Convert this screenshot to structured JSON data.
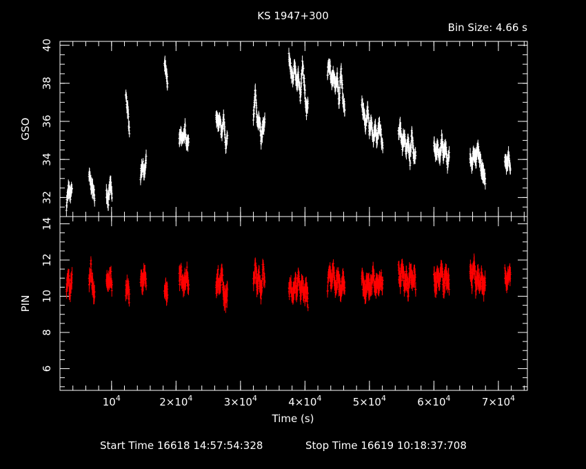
{
  "chart_data": {
    "type": "line",
    "title": "KS 1947+300",
    "bin_size_label": "Bin Size:  4.66  s",
    "xlabel": "Time (s)",
    "footer": {
      "start_time": "Start Time 16618 14:57:54:328",
      "stop_time": "Stop Time 16619 10:18:37:708"
    },
    "xlim": [
      2000,
      74500
    ],
    "x_ticks": [
      {
        "value": 10000,
        "mantissa": "",
        "exp": "4"
      },
      {
        "value": 20000,
        "mantissa": "2×",
        "exp": "4"
      },
      {
        "value": 30000,
        "mantissa": "3×",
        "exp": "4"
      },
      {
        "value": 40000,
        "mantissa": "4×",
        "exp": "4"
      },
      {
        "value": 50000,
        "mantissa": "5×",
        "exp": "4"
      },
      {
        "value": 60000,
        "mantissa": "6×",
        "exp": "4"
      },
      {
        "value": 70000,
        "mantissa": "7×",
        "exp": "4"
      }
    ],
    "panels": [
      {
        "name": "GSO",
        "ylabel": "GSO",
        "color": "#ffffff",
        "ylim": [
          31,
          40.2
        ],
        "yticks": [
          32,
          34,
          36,
          38,
          40
        ],
        "ytick_labels": [
          "32",
          "34",
          "36",
          "38",
          "40"
        ],
        "series": [
          {
            "x": [
              3000,
              3300,
              3600,
              3900
            ],
            "y": [
              31.6,
              32.4,
              32.1,
              32.6
            ]
          },
          {
            "x": [
              6500,
              6800,
              7100,
              7400
            ],
            "y": [
              33.2,
              32.7,
              32.4,
              32.1
            ]
          },
          {
            "x": [
              9200,
              9500,
              9800,
              10100
            ],
            "y": [
              32.3,
              31.8,
              32.8,
              31.9
            ]
          },
          {
            "x": [
              12200,
              12500,
              12800
            ],
            "y": [
              37.4,
              36.6,
              35.4
            ]
          },
          {
            "x": [
              14500,
              14800,
              15100,
              15400
            ],
            "y": [
              33.1,
              33.8,
              33.2,
              34.0
            ]
          },
          {
            "x": [
              18200,
              18500,
              18700
            ],
            "y": [
              39.1,
              38.4,
              38.0
            ]
          },
          {
            "x": [
              20500,
              20800,
              21100,
              21400,
              21700,
              22000
            ],
            "y": [
              35.0,
              35.3,
              34.9,
              35.6,
              34.7,
              35.2
            ]
          },
          {
            "x": [
              26200,
              26500,
              26800,
              27100,
              27400,
              27700,
              28000
            ],
            "y": [
              36.4,
              35.9,
              36.0,
              35.3,
              36.2,
              34.8,
              35.2
            ]
          },
          {
            "x": [
              32000,
              32300,
              32600,
              32900,
              33200,
              33500,
              33800
            ],
            "y": [
              36.0,
              37.6,
              35.8,
              36.2,
              35.1,
              35.7,
              35.9
            ]
          },
          {
            "x": [
              37500,
              37800,
              38100,
              38400,
              38700,
              39000,
              39300,
              39600,
              39900,
              40200,
              40500
            ],
            "y": [
              39.5,
              38.7,
              38.2,
              39.0,
              37.9,
              38.4,
              37.3,
              39.1,
              38.0,
              36.5,
              37.2
            ]
          },
          {
            "x": [
              43500,
              43800,
              44100,
              44400,
              44700,
              45000,
              45300,
              45600,
              45900,
              46200
            ],
            "y": [
              38.6,
              39.0,
              38.1,
              38.5,
              37.8,
              38.3,
              37.0,
              38.7,
              37.2,
              36.6
            ]
          },
          {
            "x": [
              48800,
              49100,
              49400,
              49700,
              50000,
              50300,
              50600,
              50900,
              51200,
              51500,
              51800,
              52100
            ],
            "y": [
              37.0,
              36.4,
              35.8,
              36.6,
              35.4,
              36.1,
              35.0,
              35.7,
              34.9,
              35.9,
              35.3,
              34.4
            ]
          },
          {
            "x": [
              54500,
              54800,
              55100,
              55400,
              55700,
              56000,
              56300,
              56600,
              56900,
              57200
            ],
            "y": [
              35.3,
              35.7,
              34.8,
              35.2,
              34.5,
              35.0,
              33.9,
              35.4,
              34.1,
              34.4
            ]
          },
          {
            "x": [
              60000,
              60300,
              60600,
              60900,
              61200,
              61500,
              61800,
              62100,
              62400
            ],
            "y": [
              34.9,
              34.3,
              34.6,
              34.0,
              35.1,
              34.2,
              34.8,
              33.7,
              34.3
            ]
          },
          {
            "x": [
              65600,
              65900,
              66200,
              66500,
              66800,
              67100,
              67400,
              67700,
              68000
            ],
            "y": [
              34.1,
              33.7,
              34.4,
              33.9,
              34.6,
              34.0,
              33.5,
              33.2,
              32.9
            ]
          },
          {
            "x": [
              71000,
              71300,
              71600,
              71900
            ],
            "y": [
              34.0,
              33.7,
              34.2,
              33.5
            ]
          }
        ]
      },
      {
        "name": "PIN",
        "ylabel": "PIN",
        "color": "#ff0000",
        "ylim": [
          4.8,
          14.4
        ],
        "yticks": [
          6,
          8,
          10,
          12,
          14
        ],
        "ytick_labels": [
          "6",
          "8",
          "10",
          "12",
          "14"
        ],
        "series": [
          {
            "x": [
              3000,
              3300,
              3600,
              3900
            ],
            "y": [
              10.4,
              10.9,
              10.2,
              11.1
            ]
          },
          {
            "x": [
              6500,
              6800,
              7100,
              7400
            ],
            "y": [
              10.8,
              11.6,
              10.4,
              10.1
            ]
          },
          {
            "x": [
              9200,
              9500,
              9800,
              10100
            ],
            "y": [
              11.0,
              10.5,
              11.2,
              10.6
            ]
          },
          {
            "x": [
              12200,
              12500,
              12800
            ],
            "y": [
              10.2,
              10.6,
              9.9
            ]
          },
          {
            "x": [
              14500,
              14800,
              15100,
              15400
            ],
            "y": [
              11.1,
              10.7,
              11.3,
              10.4
            ]
          },
          {
            "x": [
              18200,
              18500,
              18700
            ],
            "y": [
              10.6,
              10.1,
              10.4
            ]
          },
          {
            "x": [
              20500,
              20800,
              21100,
              21400,
              21700,
              22000
            ],
            "y": [
              11.0,
              11.3,
              10.6,
              10.9,
              11.2,
              10.5
            ]
          },
          {
            "x": [
              26200,
              26500,
              26800,
              27100,
              27400,
              27700,
              28000
            ],
            "y": [
              10.4,
              11.1,
              10.6,
              11.3,
              10.0,
              9.8,
              10.3
            ]
          },
          {
            "x": [
              32000,
              32300,
              32600,
              32900,
              33200,
              33500,
              33800
            ],
            "y": [
              10.8,
              11.5,
              10.6,
              11.0,
              10.2,
              11.6,
              10.7
            ]
          },
          {
            "x": [
              37500,
              37800,
              38100,
              38400,
              38700,
              39000,
              39300,
              39600,
              39900,
              40200,
              40500
            ],
            "y": [
              10.3,
              10.7,
              10.0,
              10.9,
              10.4,
              11.0,
              10.2,
              10.6,
              9.9,
              10.4,
              9.7
            ]
          },
          {
            "x": [
              43500,
              43800,
              44100,
              44400,
              44700,
              45000,
              45300,
              45600,
              45900,
              46200
            ],
            "y": [
              10.6,
              11.2,
              10.8,
              11.4,
              10.4,
              11.0,
              10.7,
              10.3,
              11.1,
              10.5
            ]
          },
          {
            "x": [
              48800,
              49100,
              49400,
              49700,
              50000,
              50300,
              50600,
              50900,
              51200,
              51500,
              51800,
              52100
            ],
            "y": [
              11.0,
              10.6,
              10.2,
              10.9,
              10.4,
              10.7,
              11.2,
              10.3,
              10.8,
              10.5,
              11.0,
              10.6
            ]
          },
          {
            "x": [
              54500,
              54800,
              55100,
              55400,
              55700,
              56000,
              56300,
              56600,
              56900,
              57200
            ],
            "y": [
              11.4,
              10.8,
              11.6,
              10.7,
              11.1,
              10.3,
              11.5,
              10.9,
              11.2,
              10.6
            ]
          },
          {
            "x": [
              60000,
              60300,
              60600,
              60900,
              61200,
              61500,
              61800,
              62100,
              62400
            ],
            "y": [
              11.0,
              10.5,
              11.3,
              10.8,
              11.6,
              10.4,
              11.2,
              10.9,
              10.6
            ]
          },
          {
            "x": [
              65600,
              65900,
              66200,
              66500,
              66800,
              67100,
              67400,
              67700,
              68000
            ],
            "y": [
              11.4,
              10.9,
              11.7,
              10.6,
              11.2,
              10.7,
              11.0,
              10.4,
              10.8
            ]
          },
          {
            "x": [
              71000,
              71300,
              71600,
              71900
            ],
            "y": [
              11.2,
              10.7,
              11.5,
              10.9
            ]
          }
        ]
      }
    ]
  }
}
